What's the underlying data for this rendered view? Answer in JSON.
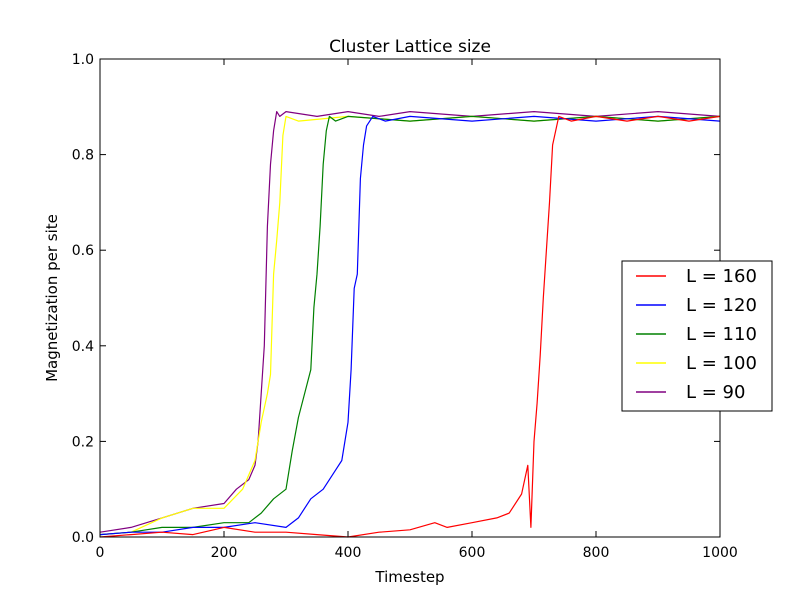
{
  "chart_data": {
    "type": "line",
    "title": "Cluster Lattice size",
    "xlabel": "Timestep",
    "ylabel": "Magnetization per site",
    "xlim": [
      0,
      1000
    ],
    "ylim": [
      0,
      1.0
    ],
    "xticks": [
      0,
      200,
      400,
      600,
      800,
      1000
    ],
    "yticks": [
      0.0,
      0.2,
      0.4,
      0.6,
      0.8,
      1.0
    ],
    "xtick_labels": [
      "0",
      "200",
      "400",
      "600",
      "800",
      "1000"
    ],
    "ytick_labels": [
      "0.0",
      "0.2",
      "0.4",
      "0.6",
      "0.8",
      "1.0"
    ],
    "grid": false,
    "legend_position": "right",
    "series": [
      {
        "name": "L = 160",
        "color": "#ff0000",
        "x": [
          0,
          50,
          100,
          150,
          200,
          250,
          300,
          350,
          400,
          450,
          500,
          540,
          560,
          600,
          640,
          660,
          680,
          690,
          695,
          700,
          705,
          710,
          715,
          720,
          725,
          730,
          740,
          760,
          800,
          850,
          900,
          950,
          1000
        ],
        "y": [
          0.0,
          0.005,
          0.01,
          0.005,
          0.02,
          0.01,
          0.01,
          0.005,
          0.0,
          0.01,
          0.015,
          0.03,
          0.02,
          0.03,
          0.04,
          0.05,
          0.09,
          0.15,
          0.02,
          0.2,
          0.28,
          0.38,
          0.5,
          0.6,
          0.7,
          0.82,
          0.88,
          0.87,
          0.88,
          0.87,
          0.88,
          0.87,
          0.88
        ]
      },
      {
        "name": "L = 120",
        "color": "#0000ff",
        "x": [
          0,
          50,
          100,
          150,
          200,
          250,
          300,
          320,
          340,
          360,
          380,
          390,
          395,
          400,
          405,
          410,
          415,
          420,
          425,
          430,
          440,
          460,
          500,
          600,
          700,
          800,
          900,
          1000
        ],
        "y": [
          0.005,
          0.01,
          0.01,
          0.02,
          0.02,
          0.03,
          0.02,
          0.04,
          0.08,
          0.1,
          0.14,
          0.16,
          0.2,
          0.24,
          0.35,
          0.52,
          0.55,
          0.75,
          0.82,
          0.86,
          0.88,
          0.87,
          0.88,
          0.87,
          0.88,
          0.87,
          0.88,
          0.87
        ]
      },
      {
        "name": "L = 110",
        "color": "#008000",
        "x": [
          0,
          50,
          100,
          150,
          200,
          240,
          260,
          280,
          300,
          310,
          320,
          330,
          340,
          345,
          350,
          355,
          360,
          365,
          370,
          380,
          400,
          500,
          600,
          700,
          800,
          900,
          1000
        ],
        "y": [
          0.005,
          0.01,
          0.02,
          0.02,
          0.03,
          0.03,
          0.05,
          0.08,
          0.1,
          0.18,
          0.25,
          0.3,
          0.35,
          0.48,
          0.55,
          0.65,
          0.78,
          0.85,
          0.88,
          0.87,
          0.88,
          0.87,
          0.88,
          0.87,
          0.88,
          0.87,
          0.88
        ]
      },
      {
        "name": "L = 100",
        "color": "#ffff00",
        "x": [
          0,
          50,
          100,
          150,
          200,
          230,
          250,
          260,
          270,
          275,
          280,
          285,
          290,
          295,
          300,
          320,
          400,
          500,
          600,
          700,
          800,
          900,
          1000
        ],
        "y": [
          0.005,
          0.01,
          0.04,
          0.06,
          0.06,
          0.1,
          0.16,
          0.24,
          0.3,
          0.34,
          0.55,
          0.62,
          0.7,
          0.84,
          0.88,
          0.87,
          0.88,
          0.87,
          0.88,
          0.87,
          0.88,
          0.87,
          0.88
        ]
      },
      {
        "name": "L = 90",
        "color": "#800080",
        "x": [
          0,
          50,
          100,
          150,
          200,
          220,
          240,
          250,
          255,
          260,
          265,
          270,
          275,
          280,
          285,
          290,
          300,
          350,
          400,
          450,
          500,
          600,
          700,
          800,
          900,
          1000
        ],
        "y": [
          0.01,
          0.02,
          0.04,
          0.06,
          0.07,
          0.1,
          0.12,
          0.15,
          0.2,
          0.3,
          0.4,
          0.65,
          0.78,
          0.85,
          0.89,
          0.88,
          0.89,
          0.88,
          0.89,
          0.88,
          0.89,
          0.88,
          0.89,
          0.88,
          0.89,
          0.88
        ]
      }
    ]
  }
}
